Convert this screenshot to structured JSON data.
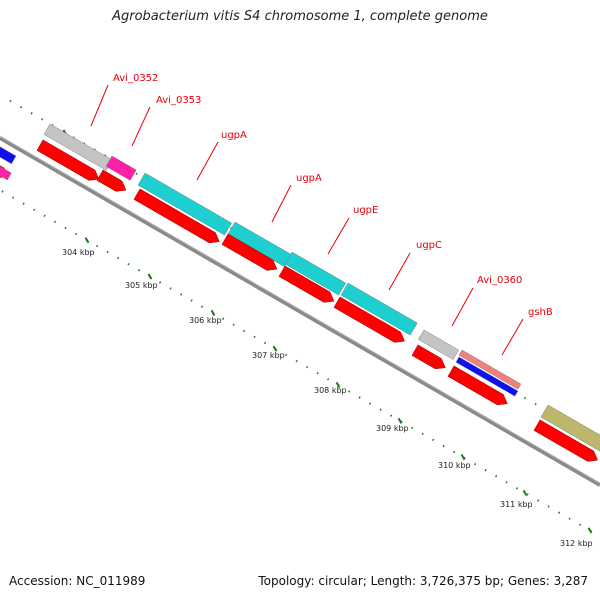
{
  "title": "Agrobacterium vitis S4 chromosome 1, complete genome",
  "footer": {
    "accession": "Accession: NC_011989",
    "topology": "Topology: circular; Length: 3,726,375 bp; Genes: 3,287"
  },
  "scale_labels": [
    "304 kbp",
    "305 kbp",
    "306 kbp",
    "307 kbp",
    "308 kbp",
    "309 kbp",
    "310 kbp",
    "311 kbp",
    "312 kbp"
  ],
  "gene_labels": [
    "Avi_0352",
    "Avi_0353",
    "ugpA",
    "ugpA",
    "ugpE",
    "ugpC",
    "Avi_0360",
    "gshB"
  ],
  "colors": {
    "cds": "#ff0000",
    "cyan_feature": "#1ecfcf",
    "grey_feature": "#c4c4c4",
    "pink_feature": "#ff1fa8",
    "blue_feature": "#1010ee",
    "salmon_feature": "#f08080",
    "olive_feature": "#bdb76b",
    "backbone": "#8a8a8a",
    "ticks": "#1f7a1f",
    "label_text": "#e8000a"
  }
}
